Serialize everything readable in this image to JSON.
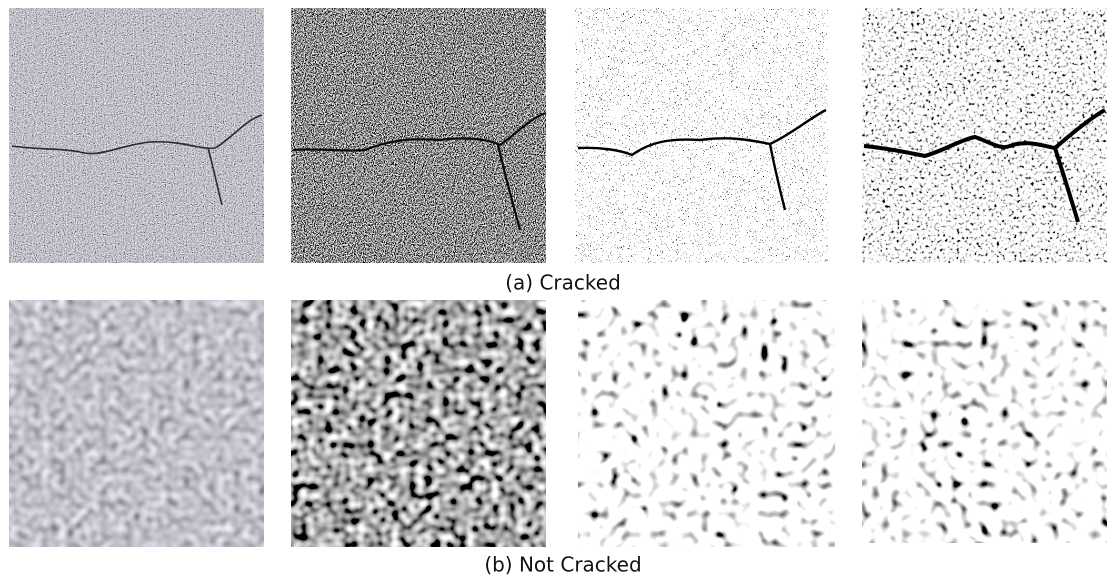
{
  "rows": [
    {
      "caption": "(a) Cracked"
    },
    {
      "caption": "(b) Not Cracked"
    }
  ]
}
